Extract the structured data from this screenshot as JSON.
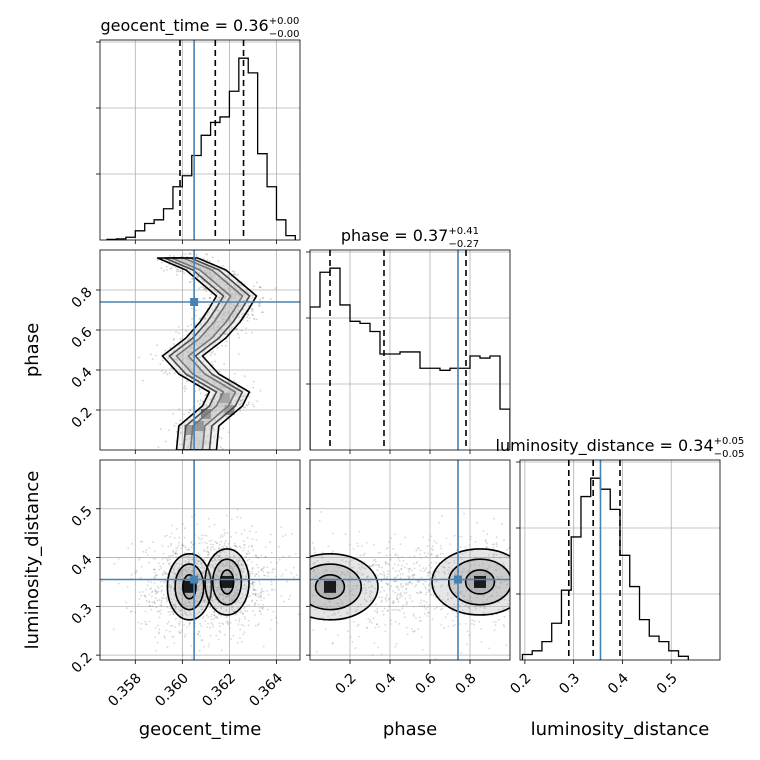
{
  "chart_data": [
    {
      "type": "histogram",
      "parameter": "geocent_time",
      "title": {
        "name": "geocent_time",
        "median": "0.36",
        "upper": "+0.00",
        "lower": "−0.00"
      },
      "xlim": [
        0.3565,
        0.365
      ],
      "bins": [
        0.3568,
        0.3572,
        0.3576,
        0.358,
        0.3584,
        0.3588,
        0.3592,
        0.3596,
        0.36,
        0.3604,
        0.3608,
        0.3612,
        0.3616,
        0.362,
        0.3624,
        0.3628,
        0.3632,
        0.3636,
        0.364,
        0.3644,
        0.3648
      ],
      "counts": [
        0.3,
        0.6,
        1.5,
        5,
        9,
        11,
        17,
        29,
        35,
        46,
        57,
        64,
        67,
        81,
        99,
        91,
        47,
        29,
        11,
        2.4
      ],
      "quantiles": [
        0.3599,
        0.3614,
        0.3626
      ],
      "truth": 0.3605
    },
    {
      "type": "histogram",
      "parameter": "phase",
      "title": {
        "name": "phase",
        "median": "0.37",
        "upper": "+0.41",
        "lower": "−0.27"
      },
      "xlim": [
        0.0,
        1.0
      ],
      "bins": [
        0.0,
        0.05,
        0.1,
        0.15,
        0.2,
        0.25,
        0.3,
        0.35,
        0.4,
        0.45,
        0.5,
        0.55,
        0.6,
        0.65,
        0.7,
        0.75,
        0.8,
        0.85,
        0.9,
        0.95,
        1.0
      ],
      "counts": [
        70,
        87,
        89,
        71,
        63,
        62,
        58,
        47,
        47,
        48,
        48,
        40,
        40,
        39,
        40,
        40,
        46,
        45,
        46,
        20
      ],
      "quantiles": [
        0.1,
        0.37,
        0.78
      ],
      "truth": 0.74
    },
    {
      "type": "histogram",
      "parameter": "luminosity_distance",
      "title": {
        "name": "luminosity_distance",
        "median": "0.34",
        "upper": "+0.05",
        "lower": "−0.05"
      },
      "xlim": [
        0.19,
        0.6
      ],
      "bins": [
        0.195,
        0.215,
        0.235,
        0.255,
        0.275,
        0.295,
        0.315,
        0.335,
        0.355,
        0.375,
        0.395,
        0.415,
        0.435,
        0.455,
        0.475,
        0.495,
        0.515,
        0.535
      ],
      "counts": [
        3,
        5,
        10,
        20,
        38,
        67,
        89,
        99,
        93,
        82,
        57,
        40,
        22,
        13,
        10,
        5,
        2
      ],
      "quantiles": [
        0.29,
        0.34,
        0.395
      ],
      "truth": 0.355
    },
    {
      "type": "contour",
      "x": "geocent_time",
      "y": "phase",
      "xlim": [
        0.3565,
        0.365
      ],
      "ylim": [
        0.0,
        1.0
      ],
      "contour_levels": [
        "0.5",
        "1.0",
        "1.5"
      ],
      "truth": [
        0.3605,
        0.74
      ],
      "ridge": [
        [
          0.3606,
          0.0
        ],
        [
          0.3607,
          0.12
        ],
        [
          0.3617,
          0.22
        ],
        [
          0.362,
          0.29
        ],
        [
          0.3607,
          0.38
        ],
        [
          0.36,
          0.47
        ],
        [
          0.361,
          0.56
        ],
        [
          0.3616,
          0.64
        ],
        [
          0.362,
          0.71
        ],
        [
          0.3623,
          0.77
        ],
        [
          0.3617,
          0.83
        ],
        [
          0.361,
          0.9
        ],
        [
          0.3598,
          0.96
        ]
      ]
    },
    {
      "type": "contour",
      "x": "geocent_time",
      "y": "luminosity_distance",
      "xlim": [
        0.3565,
        0.365
      ],
      "ylim": [
        0.19,
        0.6
      ],
      "contour_levels": [
        "0.5",
        "1.0",
        "1.5"
      ],
      "truth": [
        0.3605,
        0.355
      ],
      "modes": [
        [
          0.3603,
          0.34
        ],
        [
          0.3619,
          0.35
        ]
      ]
    },
    {
      "type": "contour",
      "x": "phase",
      "y": "luminosity_distance",
      "xlim": [
        0.0,
        1.0
      ],
      "ylim": [
        0.19,
        0.6
      ],
      "contour_levels": [
        "0.5",
        "1.0",
        "1.5"
      ],
      "truth": [
        0.74,
        0.355
      ],
      "modes": [
        [
          0.1,
          0.34
        ],
        [
          0.85,
          0.35
        ]
      ]
    }
  ],
  "axes": {
    "labels": {
      "geocent_time": "geocent_time",
      "phase": "phase",
      "luminosity_distance": "luminosity_distance"
    },
    "ticks": {
      "geocent_time": [
        "0.358",
        "0.360",
        "0.362",
        "0.364"
      ],
      "phase": [
        "0.2",
        "0.4",
        "0.6",
        "0.8"
      ],
      "luminosity_distance": [
        "0.2",
        "0.3",
        "0.4",
        "0.5"
      ]
    }
  },
  "colors": {
    "truth": "#4682b4",
    "contour": "#000000",
    "grid": "#b0b0b0",
    "samples": "#7f7f7f"
  }
}
